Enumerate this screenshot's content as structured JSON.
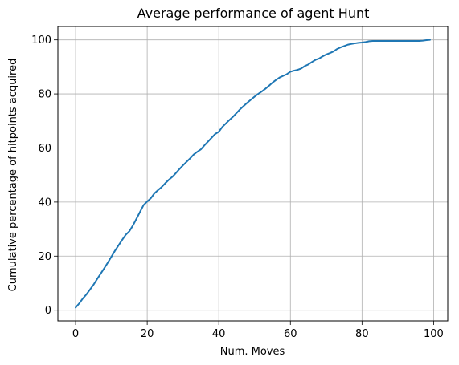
{
  "chart_data": {
    "type": "line",
    "title": "Average performance of agent Hunt",
    "xlabel": "Num. Moves",
    "ylabel": "Cumulative percentage of hitpoints acquired",
    "xlim": [
      -4.95,
      103.95
    ],
    "ylim": [
      -3.95,
      104.95
    ],
    "xticks": [
      0,
      20,
      40,
      60,
      80,
      100
    ],
    "yticks": [
      0,
      20,
      40,
      60,
      80,
      100
    ],
    "grid": true,
    "series": [
      {
        "color": "#1f77b4",
        "x": [
          0,
          1,
          2,
          3,
          4,
          5,
          6,
          7,
          8,
          9,
          10,
          11,
          12,
          13,
          14,
          15,
          16,
          17,
          18,
          19,
          20,
          21,
          22,
          23,
          24,
          25,
          26,
          27,
          28,
          29,
          30,
          31,
          32,
          33,
          34,
          35,
          36,
          37,
          38,
          39,
          40,
          41,
          42,
          43,
          44,
          45,
          46,
          47,
          48,
          49,
          50,
          51,
          52,
          53,
          54,
          55,
          56,
          57,
          58,
          59,
          60,
          61,
          62,
          63,
          64,
          65,
          66,
          67,
          68,
          69,
          70,
          71,
          72,
          73,
          74,
          75,
          76,
          77,
          78,
          79,
          80,
          81,
          82,
          83,
          84,
          85,
          86,
          87,
          88,
          89,
          90,
          91,
          92,
          93,
          94,
          95,
          96,
          97,
          98,
          99
        ],
        "y": [
          1.0,
          2.5,
          4.3,
          5.8,
          7.6,
          9.4,
          11.5,
          13.5,
          15.5,
          17.6,
          19.8,
          22.0,
          24.0,
          26.0,
          27.9,
          29.2,
          31.3,
          33.8,
          36.4,
          38.9,
          40.2,
          41.4,
          43.2,
          44.4,
          45.5,
          46.9,
          48.2,
          49.3,
          50.7,
          52.2,
          53.6,
          54.9,
          56.2,
          57.6,
          58.6,
          59.5,
          61.0,
          62.4,
          63.8,
          65.2,
          66.0,
          67.8,
          69.1,
          70.4,
          71.6,
          73.0,
          74.4,
          75.6,
          76.8,
          77.9,
          79.0,
          80.0,
          80.9,
          81.9,
          83.0,
          84.2,
          85.2,
          86.1,
          86.7,
          87.3,
          88.2,
          88.6,
          88.9,
          89.4,
          90.3,
          90.9,
          91.8,
          92.6,
          93.1,
          93.9,
          94.6,
          95.1,
          95.7,
          96.6,
          97.2,
          97.7,
          98.2,
          98.5,
          98.7,
          98.9,
          99.0,
          99.2,
          99.5,
          99.6,
          99.6,
          99.6,
          99.6,
          99.6,
          99.6,
          99.6,
          99.6,
          99.6,
          99.6,
          99.6,
          99.6,
          99.6,
          99.6,
          99.7,
          99.9,
          100.0
        ]
      }
    ]
  }
}
